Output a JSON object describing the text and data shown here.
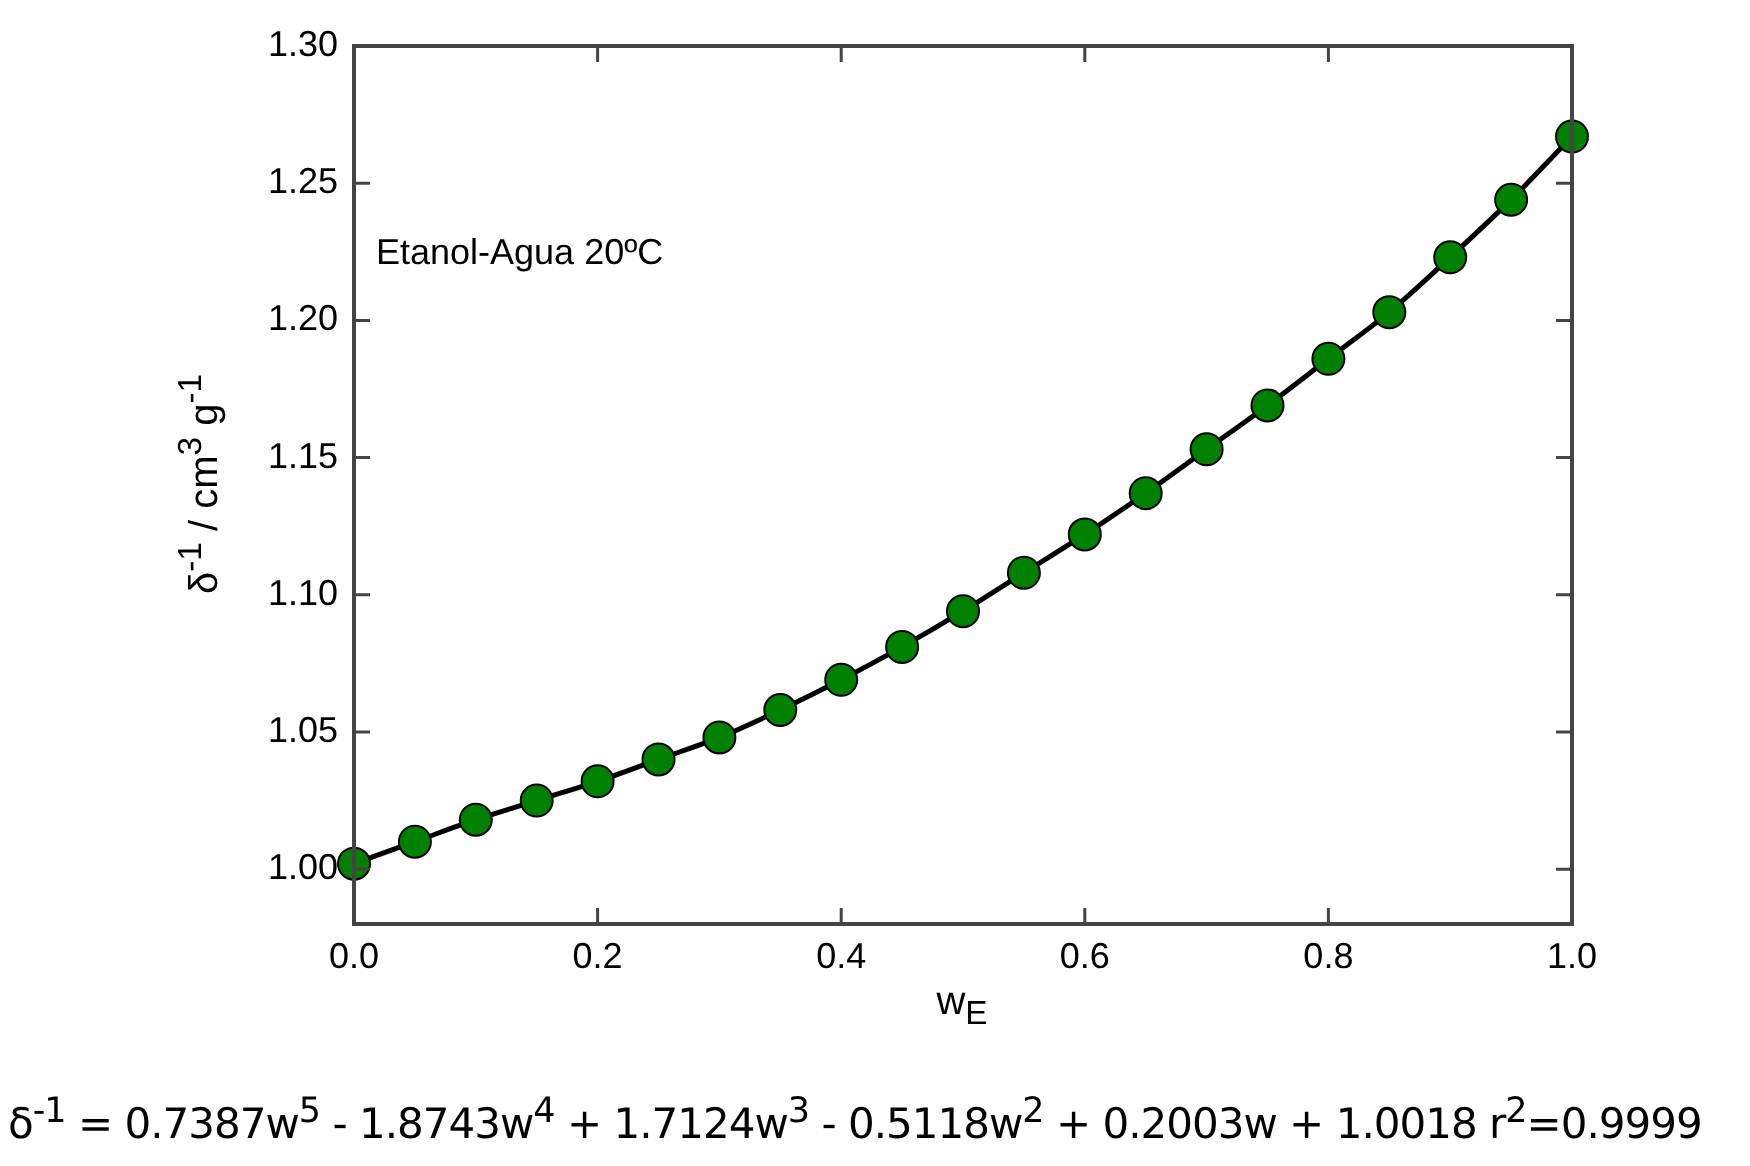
{
  "chart_data": {
    "type": "line",
    "xlabel": "w$_{E}$",
    "ylabel": "δ$^{-1}$ / cm$^{3}$ g$^{-1}$",
    "x": [
      0,
      0.05,
      0.1,
      0.15,
      0.2,
      0.25,
      0.3,
      0.35,
      0.4,
      0.45,
      0.5,
      0.55,
      0.6,
      0.65,
      0.7,
      0.75,
      0.8,
      0.85,
      0.9,
      0.95,
      1.0
    ],
    "series": [
      {
        "color": "#008000",
        "values": [
          1.002,
          1.01,
          1.018,
          1.025,
          1.032,
          1.04,
          1.048,
          1.058,
          1.069,
          1.081,
          1.094,
          1.108,
          1.122,
          1.137,
          1.153,
          1.169,
          1.186,
          1.203,
          1.223,
          1.244,
          1.267
        ]
      }
    ],
    "xlim": [
      0,
      1
    ],
    "xticks": [
      {
        "value": 0,
        "label": "0.0"
      },
      0.2,
      0.4,
      0.6,
      0.8,
      {
        "value": 1,
        "label": "1.0"
      }
    ],
    "ylim": [
      0.98,
      1.3
    ],
    "yticks": [
      {
        "value": 1,
        "label": "1.00"
      },
      1.05,
      {
        "value": 1.1,
        "label": "1.10"
      },
      1.15,
      {
        "value": 1.2,
        "label": "1.20"
      },
      1.25,
      {
        "value": 1.3,
        "label": "1.30"
      }
    ],
    "marker": "circle",
    "line_style": "solid",
    "grid": false,
    "legend": false,
    "annotations": [
      "Etanol-Agua 20ºC",
      "δ$^{-1}$ = 0.7387w$^{5}$ - 1.8743w$^{4}$ + 1.7124w$^{3}$ - 0.5118w$^{2}$ + 0.2003w + 1.0018  r$^{2}$=0.9999"
    ]
  }
}
